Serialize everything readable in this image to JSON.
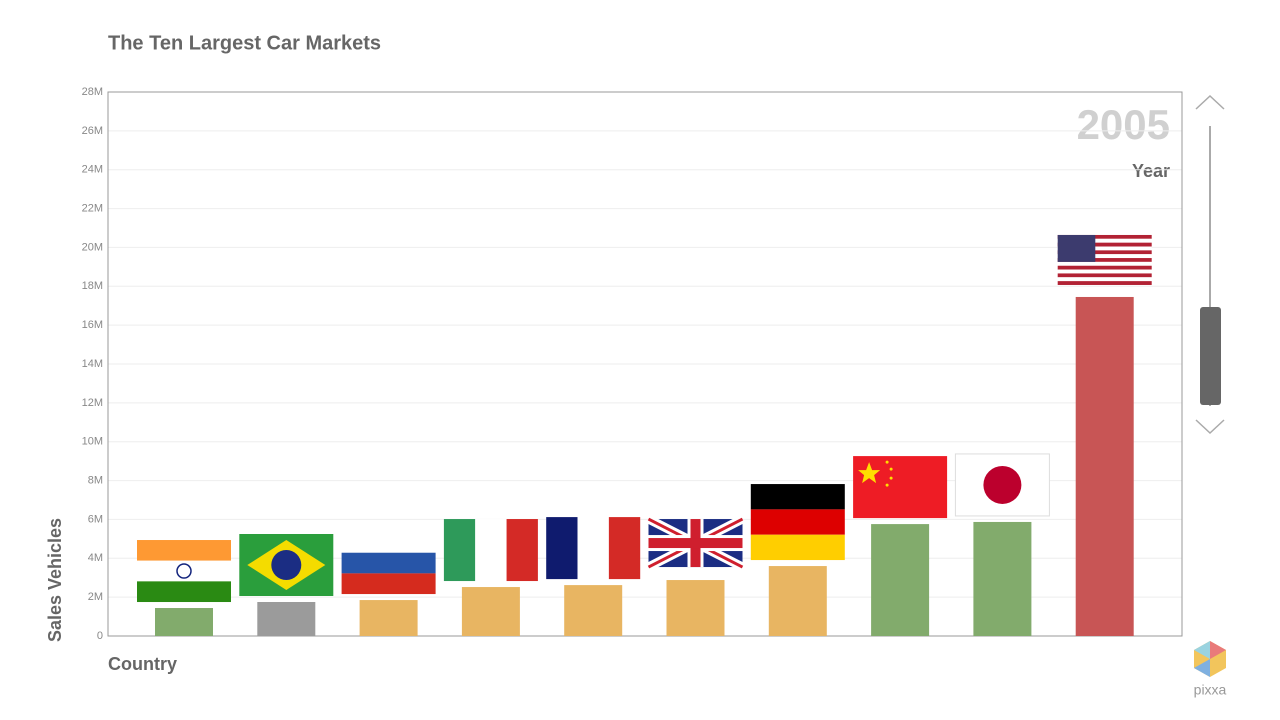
{
  "chart_data": {
    "type": "bar",
    "title": "The Ten Largest Car Markets",
    "ylabel": "Sales Vehicles",
    "xlabel": "Country",
    "annotation": "2005",
    "annotation_label": "Year",
    "categories": [
      null,
      null,
      null,
      null,
      null,
      null,
      null,
      null,
      null,
      null
    ],
    "values": [
      1440000,
      1750000,
      1850000,
      2520000,
      2620000,
      2880000,
      3600000,
      5760000,
      5870000,
      17450000
    ],
    "colors": [
      "#82ab6c",
      "#9b9b9b",
      "#e8b562",
      "#e8b562",
      "#e8b562",
      "#e8b562",
      "#e8b562",
      "#82ab6c",
      "#82ab6c",
      "#c85555"
    ],
    "ylim": [
      0,
      28000000
    ],
    "yticks": [
      0,
      {
        "value": 2000000,
        "label": "2M"
      },
      {
        "value": 4000000,
        "label": "4M"
      },
      {
        "value": 6000000,
        "label": "6M"
      },
      {
        "value": 8000000,
        "label": "8M"
      },
      {
        "value": 10000000,
        "label": "10M"
      },
      {
        "value": 12000000,
        "label": "12M"
      },
      {
        "value": 14000000,
        "label": "14M"
      },
      {
        "value": 16000000,
        "label": "16M"
      },
      {
        "value": 18000000,
        "label": "18M"
      },
      {
        "value": 20000000,
        "label": "20M"
      },
      {
        "value": 22000000,
        "label": "22M"
      },
      {
        "value": 24000000,
        "label": "24M"
      },
      {
        "value": 26000000,
        "label": "26M"
      },
      {
        "value": 28000000,
        "label": "28M"
      }
    ],
    "grid": true
  },
  "brand": "pixxa"
}
